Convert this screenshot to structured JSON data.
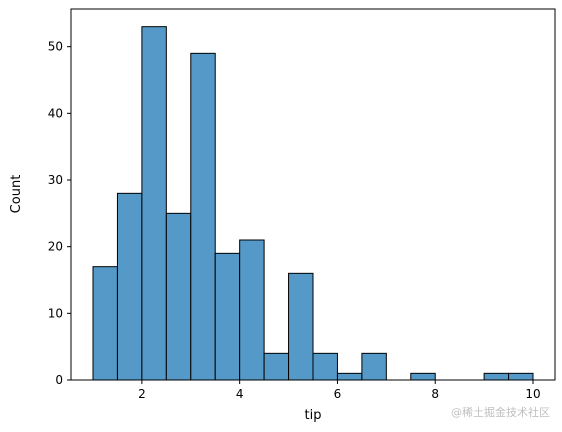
{
  "chart_data": {
    "type": "bar",
    "title": "",
    "xlabel": "tip",
    "ylabel": "Count",
    "bin_start": 1.0,
    "bin_width": 0.5,
    "values": [
      17,
      28,
      53,
      25,
      49,
      19,
      21,
      4,
      16,
      4,
      1,
      4,
      0,
      1,
      0,
      0,
      1,
      1
    ],
    "xlim": [
      0.55,
      10.45
    ],
    "ylim": [
      0,
      55.65
    ],
    "xticks": [
      2,
      4,
      6,
      8,
      10
    ],
    "yticks": [
      0,
      10,
      20,
      30,
      40,
      50
    ],
    "bar_color": "#5499c7",
    "edge_color": "#000000",
    "grid": false,
    "legend": "none"
  },
  "watermark": "@稀土掘金技术社区"
}
